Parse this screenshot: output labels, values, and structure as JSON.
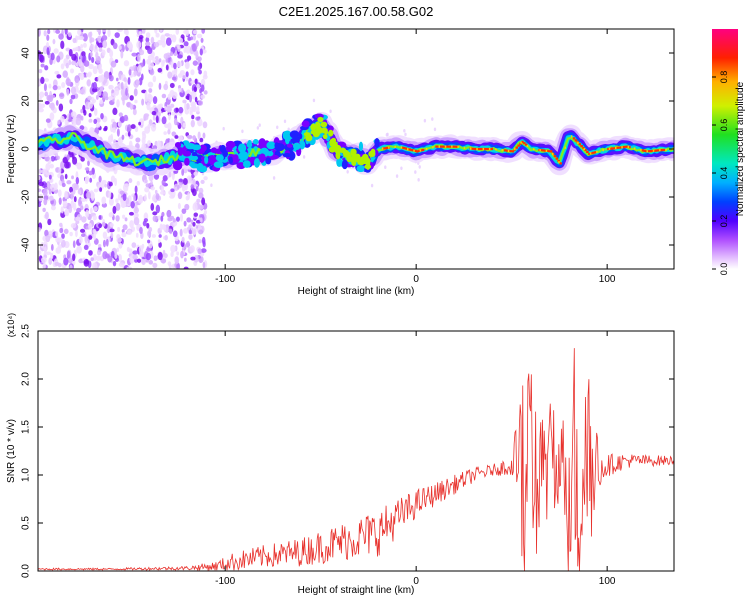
{
  "title": "C2E1.2025.167.00.58.G02",
  "chart_data": [
    {
      "type": "heatmap",
      "xlabel": "Height of straight line (km)",
      "ylabel": "Frequency (Hz)",
      "xlim": [
        -198,
        135
      ],
      "ylim": [
        -50,
        50
      ],
      "xticks": [
        -100,
        0,
        100
      ],
      "yticks": [
        -40,
        -20,
        0,
        20,
        40
      ],
      "colorbar": {
        "label": "Normalized spectral amplitude",
        "range": [
          0.0,
          1.0
        ],
        "ticks": [
          "0.0",
          "0.2",
          "0.4",
          "0.6",
          "0.8"
        ]
      },
      "ridge": {
        "description_free": true,
        "x": [
          -198,
          -180,
          -160,
          -140,
          -120,
          -110,
          -100,
          -90,
          -80,
          -70,
          -60,
          -55,
          -50,
          -45,
          -40,
          -30,
          -25,
          -20,
          -10,
          0,
          10,
          20,
          30,
          40,
          50,
          55,
          60,
          70,
          75,
          80,
          90,
          100,
          110,
          120,
          135
        ],
        "y": [
          2,
          5,
          -3,
          -6,
          -2,
          -4,
          -3,
          -2,
          -1,
          0,
          4,
          8,
          10,
          4,
          -2,
          -3,
          -6,
          0,
          1,
          -1,
          1,
          1,
          0,
          0,
          -1,
          3,
          0,
          -1,
          -6,
          6,
          -2,
          0,
          1,
          -1,
          0
        ]
      },
      "noise_region_xlim": [
        -198,
        -118
      ]
    },
    {
      "type": "line",
      "xlabel": "Height of straight line (km)",
      "ylabel": "SNR (10 * v/v)",
      "y_multiplier": "(x10⁴)",
      "xlim": [
        -198,
        135
      ],
      "ylim": [
        0.0,
        2.5
      ],
      "xticks": [
        -100,
        0,
        100
      ],
      "yticks": [
        "0.0",
        "0.5",
        "1.0",
        "1.5",
        "2.0",
        "2.5"
      ],
      "color": "#e8322d",
      "series_envelope": {
        "x": [
          -198,
          -160,
          -120,
          -105,
          -95,
          -80,
          -60,
          -40,
          -20,
          -10,
          0,
          10,
          20,
          30,
          40,
          50,
          55,
          60,
          65,
          70,
          75,
          80,
          85,
          90,
          95,
          100,
          110,
          120,
          135
        ],
        "base": [
          0.02,
          0.02,
          0.03,
          0.05,
          0.1,
          0.15,
          0.2,
          0.3,
          0.4,
          0.55,
          0.7,
          0.8,
          0.9,
          1.0,
          1.05,
          1.1,
          1.1,
          1.05,
          1.05,
          1.1,
          1.1,
          1.0,
          1.0,
          1.05,
          1.1,
          1.1,
          1.15,
          1.15,
          1.15
        ],
        "amp": [
          0.01,
          0.01,
          0.02,
          0.05,
          0.1,
          0.12,
          0.15,
          0.2,
          0.25,
          0.2,
          0.15,
          0.12,
          0.1,
          0.08,
          0.06,
          0.1,
          0.7,
          1.1,
          0.6,
          0.5,
          0.4,
          0.9,
          1.3,
          0.8,
          0.3,
          0.12,
          0.08,
          0.06,
          0.05
        ]
      }
    }
  ]
}
